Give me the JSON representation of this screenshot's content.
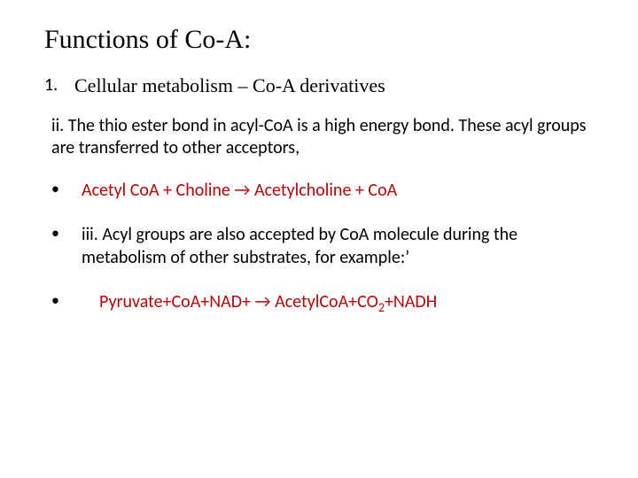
{
  "colors": {
    "text": "#000000",
    "accent": "#c00000",
    "background": "#ffffff"
  },
  "typography": {
    "title_family": "Comic Sans MS",
    "title_size_pt": 30,
    "body_family": "Calibri",
    "body_size_pt": 20,
    "numbered_item_family": "Comic Sans MS",
    "numbered_item_size_pt": 22
  },
  "title": "Functions of Co-A:",
  "item1_number": "1.",
  "item1_text": "Cellular metabolism – Co-A derivatives",
  "para_ii": "ii. The thio ester bond in acyl-CoA is a high energy bond. These acyl groups are transferred to other acceptors,",
  "bullet_marker": "•",
  "eq1": "Acetyl CoA + Choline → Acetylcholine + CoA",
  "para_iii": "iii. Acyl groups are also accepted by CoA molecule during the metabolism of other substrates, for example:’",
  "eq2_pre": "Pyruvate+CoA+NAD+ → AcetylCoA+CO",
  "eq2_sub": "2",
  "eq2_post": "+NADH"
}
